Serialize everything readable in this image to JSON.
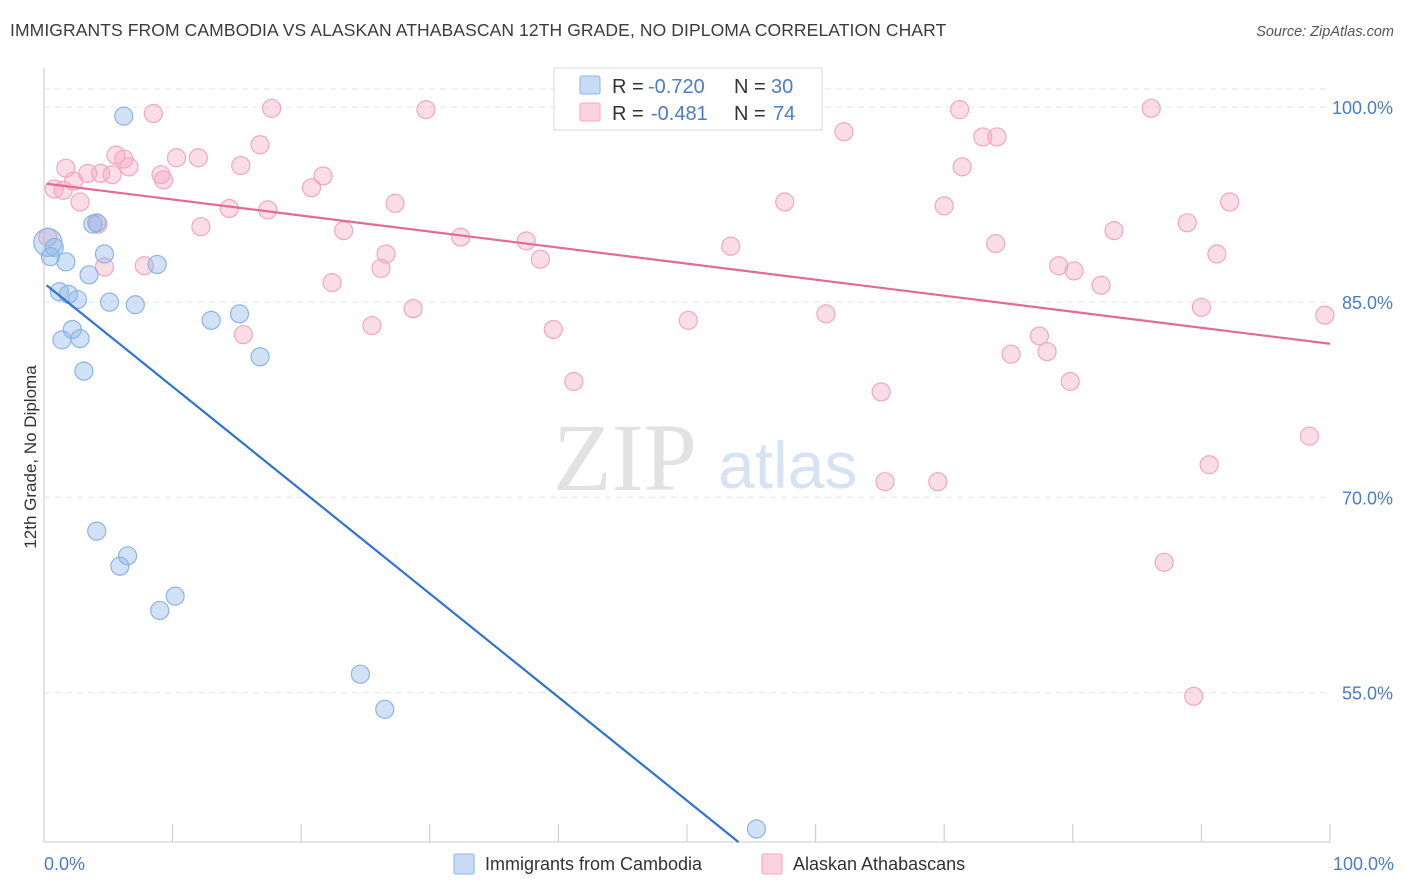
{
  "title": "IMMIGRANTS FROM CAMBODIA VS ALASKAN ATHABASCAN 12TH GRADE, NO DIPLOMA CORRELATION CHART",
  "source": "Source: ZipAtlas.com",
  "watermark": {
    "zip": "ZIP",
    "atlas": "atlas"
  },
  "chart_data": {
    "type": "scatter",
    "ylabel": "12th Grade, No Diploma",
    "xlim": [
      0,
      100
    ],
    "ylim": [
      43.5,
      103
    ],
    "x_tick_labels": {
      "left": "0.0%",
      "right": "100.0%"
    },
    "y_ticks": [
      {
        "value": 100,
        "label": "100.0%"
      },
      {
        "value": 85,
        "label": "85.0%"
      },
      {
        "value": 70,
        "label": "70.0%"
      },
      {
        "value": 55,
        "label": "55.0%"
      }
    ],
    "grid": true,
    "legend": {
      "position": "top-center",
      "entries": [
        {
          "r_label": "R =",
          "r_value": "-0.720",
          "n_label": "N =",
          "n_value": "30",
          "color": "#8ab4e8"
        },
        {
          "r_label": "R =",
          "r_value": "-0.481",
          "n_label": "N =",
          "n_value": "74",
          "color": "#f4a6bf"
        }
      ]
    },
    "series": [
      {
        "name": "Immigrants from Cambodia",
        "color": "#8ab4e8",
        "line_color": "#2f74d0",
        "trend": {
          "x": [
            0.2,
            54
          ],
          "y": [
            86.3,
            43.5
          ]
        },
        "points": [
          [
            0.3,
            89.6,
            14
          ],
          [
            0.5,
            88.5,
            9
          ],
          [
            0.8,
            89.2,
            9
          ],
          [
            1.2,
            85.8,
            9
          ],
          [
            1.4,
            82.1,
            9
          ],
          [
            1.7,
            88.1,
            9
          ],
          [
            1.9,
            85.6,
            9
          ],
          [
            2.2,
            82.9,
            9
          ],
          [
            2.6,
            85.2,
            9
          ],
          [
            2.8,
            82.2,
            9
          ],
          [
            3.1,
            79.7,
            9
          ],
          [
            3.5,
            87.1,
            9
          ],
          [
            3.8,
            91.0,
            9
          ],
          [
            4.1,
            91.1,
            9
          ],
          [
            4.7,
            88.7,
            9
          ],
          [
            5.1,
            85.0,
            9
          ],
          [
            7.1,
            84.8,
            9
          ],
          [
            8.8,
            87.9,
            9
          ],
          [
            13.0,
            83.6,
            9
          ],
          [
            15.2,
            84.1,
            9
          ],
          [
            16.8,
            80.8,
            9
          ],
          [
            6.2,
            99.3,
            9
          ],
          [
            4.1,
            67.4,
            9
          ],
          [
            5.9,
            64.7,
            9
          ],
          [
            6.5,
            65.5,
            9
          ],
          [
            9.0,
            61.3,
            9
          ],
          [
            10.2,
            62.4,
            9
          ],
          [
            24.6,
            56.4,
            9
          ],
          [
            26.5,
            53.7,
            9
          ],
          [
            55.4,
            44.5,
            9
          ]
        ]
      },
      {
        "name": "Alaskan Athabascans",
        "color": "#f4a6bf",
        "line_color": "#e36a93",
        "trend": {
          "x": [
            0.2,
            100
          ],
          "y": [
            94.1,
            81.8
          ]
        },
        "points": [
          [
            0.3,
            90.0,
            9
          ],
          [
            0.8,
            93.7,
            9
          ],
          [
            1.5,
            93.6,
            9
          ],
          [
            1.7,
            95.3,
            9
          ],
          [
            2.3,
            94.3,
            9
          ],
          [
            2.8,
            92.7,
            9
          ],
          [
            3.4,
            94.9,
            9
          ],
          [
            4.2,
            91.0,
            9
          ],
          [
            4.4,
            94.9,
            9
          ],
          [
            4.7,
            87.7,
            9
          ],
          [
            5.3,
            94.8,
            9
          ],
          [
            5.6,
            96.3,
            9
          ],
          [
            6.2,
            96.0,
            9
          ],
          [
            6.6,
            95.4,
            9
          ],
          [
            7.8,
            87.8,
            9
          ],
          [
            8.5,
            99.5,
            9
          ],
          [
            9.1,
            94.8,
            9
          ],
          [
            9.3,
            94.4,
            9
          ],
          [
            10.3,
            96.1,
            9
          ],
          [
            12.0,
            96.1,
            9
          ],
          [
            12.2,
            90.8,
            9
          ],
          [
            14.4,
            92.2,
            9
          ],
          [
            15.3,
            95.5,
            9
          ],
          [
            15.5,
            82.5,
            9
          ],
          [
            16.8,
            97.1,
            9
          ],
          [
            17.4,
            92.1,
            9
          ],
          [
            17.7,
            99.9,
            9
          ],
          [
            20.8,
            93.8,
            9
          ],
          [
            21.7,
            94.7,
            9
          ],
          [
            22.4,
            86.5,
            9
          ],
          [
            23.3,
            90.5,
            9
          ],
          [
            25.5,
            83.2,
            9
          ],
          [
            26.2,
            87.6,
            9
          ],
          [
            26.6,
            88.7,
            9
          ],
          [
            27.3,
            92.6,
            9
          ],
          [
            28.7,
            84.5,
            9
          ],
          [
            29.7,
            99.8,
            9
          ],
          [
            32.4,
            90.0,
            9
          ],
          [
            37.5,
            89.7,
            9
          ],
          [
            38.6,
            88.3,
            9
          ],
          [
            39.6,
            82.9,
            9
          ],
          [
            41.2,
            78.9,
            9
          ],
          [
            50.1,
            83.6,
            9
          ],
          [
            53.4,
            89.3,
            9
          ],
          [
            57.6,
            92.7,
            9
          ],
          [
            60.8,
            84.1,
            9
          ],
          [
            62.2,
            98.1,
            9
          ],
          [
            65.1,
            78.1,
            9
          ],
          [
            65.4,
            71.2,
            9
          ],
          [
            69.5,
            71.2,
            9
          ],
          [
            70.0,
            92.4,
            9
          ],
          [
            71.2,
            99.8,
            9
          ],
          [
            71.4,
            95.4,
            9
          ],
          [
            73.0,
            97.7,
            9
          ],
          [
            74.1,
            97.7,
            9
          ],
          [
            74.0,
            89.5,
            9
          ],
          [
            75.2,
            81.0,
            9
          ],
          [
            77.4,
            82.4,
            9
          ],
          [
            78.0,
            81.2,
            9
          ],
          [
            78.9,
            87.8,
            9
          ],
          [
            79.8,
            78.9,
            9
          ],
          [
            80.1,
            87.4,
            9
          ],
          [
            82.2,
            86.3,
            9
          ],
          [
            83.2,
            90.5,
            9
          ],
          [
            86.1,
            99.9,
            9
          ],
          [
            87.1,
            65.0,
            9
          ],
          [
            88.9,
            91.1,
            9
          ],
          [
            89.4,
            54.7,
            9
          ],
          [
            90.0,
            84.6,
            9
          ],
          [
            90.6,
            72.5,
            9
          ],
          [
            91.2,
            88.7,
            9
          ],
          [
            92.2,
            92.7,
            9
          ],
          [
            98.4,
            74.7,
            9
          ],
          [
            99.6,
            84.0,
            9
          ]
        ]
      }
    ]
  }
}
